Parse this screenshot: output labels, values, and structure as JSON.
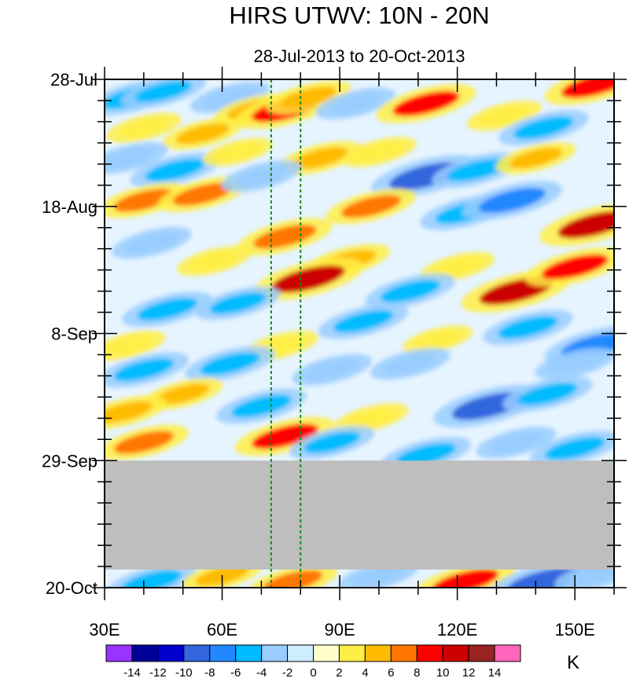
{
  "chart_data": {
    "type": "heatmap",
    "title": "HIRS UTWV: 10N - 20N",
    "subtitle": "28-Jul-2013 to 20-Oct-2013",
    "x_ticks": [
      {
        "value": 30,
        "label": "30E"
      },
      {
        "value": 60,
        "label": "60E"
      },
      {
        "value": 90,
        "label": "90E"
      },
      {
        "value": 120,
        "label": "120E"
      },
      {
        "value": 150,
        "label": "150E"
      }
    ],
    "xlim": [
      30,
      160
    ],
    "y_ticks": [
      {
        "day": 0,
        "label": "28-Jul"
      },
      {
        "day": 21,
        "label": "18-Aug"
      },
      {
        "day": 42,
        "label": "8-Sep"
      },
      {
        "day": 63,
        "label": "29-Sep"
      },
      {
        "day": 84,
        "label": "20-Oct"
      }
    ],
    "ylim_days": [
      0,
      84
    ],
    "reference_lines_lon": [
      72.5,
      80
    ],
    "missing_data": {
      "start_day": 63,
      "end_day": 81
    },
    "colorbar": {
      "unit": "K",
      "levels": [
        "-14",
        "-12",
        "-10",
        "-8",
        "-6",
        "-4",
        "-2",
        "0",
        "2",
        "4",
        "6",
        "8",
        "10",
        "12",
        "14"
      ],
      "colors": [
        "#9933ff",
        "#000099",
        "#0000cc",
        "#3366dd",
        "#2288ff",
        "#00bbff",
        "#99ccff",
        "#cceeff",
        "#ffffcc",
        "#ffee44",
        "#ffbb00",
        "#ff7700",
        "#ff0000",
        "#cc0000",
        "#992222",
        "#ff66bb"
      ]
    },
    "anomaly_blobs": [
      {
        "lon": 37,
        "day": 3,
        "value": -6
      },
      {
        "lon": 45,
        "day": 2,
        "value": -5
      },
      {
        "lon": 62,
        "day": 3,
        "value": -4
      },
      {
        "lon": 68,
        "day": 5,
        "value": 4
      },
      {
        "lon": 76,
        "day": 5,
        "value": 8
      },
      {
        "lon": 82,
        "day": 3,
        "value": 5
      },
      {
        "lon": 94,
        "day": 4,
        "value": -4
      },
      {
        "lon": 112,
        "day": 4,
        "value": 8
      },
      {
        "lon": 132,
        "day": 6,
        "value": 3
      },
      {
        "lon": 142,
        "day": 8,
        "value": -6
      },
      {
        "lon": 155,
        "day": 1,
        "value": 8
      },
      {
        "lon": 40,
        "day": 8,
        "value": 3
      },
      {
        "lon": 55,
        "day": 9,
        "value": 4
      },
      {
        "lon": 36,
        "day": 13,
        "value": -4
      },
      {
        "lon": 48,
        "day": 15,
        "value": -6
      },
      {
        "lon": 64,
        "day": 12,
        "value": 2
      },
      {
        "lon": 85,
        "day": 13,
        "value": 5
      },
      {
        "lon": 100,
        "day": 12,
        "value": 3
      },
      {
        "lon": 112,
        "day": 16,
        "value": -10
      },
      {
        "lon": 125,
        "day": 15,
        "value": -6
      },
      {
        "lon": 140,
        "day": 13,
        "value": 4
      },
      {
        "lon": 40,
        "day": 20,
        "value": 6
      },
      {
        "lon": 55,
        "day": 19,
        "value": 6
      },
      {
        "lon": 70,
        "day": 16,
        "value": -4
      },
      {
        "lon": 98,
        "day": 21,
        "value": 6
      },
      {
        "lon": 122,
        "day": 22,
        "value": -6
      },
      {
        "lon": 134,
        "day": 20,
        "value": -8
      },
      {
        "lon": 155,
        "day": 24,
        "value": 10
      },
      {
        "lon": 76,
        "day": 26,
        "value": 7
      },
      {
        "lon": 92,
        "day": 30,
        "value": 5
      },
      {
        "lon": 42,
        "day": 27,
        "value": -4
      },
      {
        "lon": 58,
        "day": 30,
        "value": 3
      },
      {
        "lon": 82,
        "day": 33,
        "value": 10
      },
      {
        "lon": 120,
        "day": 31,
        "value": 3
      },
      {
        "lon": 135,
        "day": 35,
        "value": 10
      },
      {
        "lon": 150,
        "day": 31,
        "value": 8
      },
      {
        "lon": 108,
        "day": 35,
        "value": -6
      },
      {
        "lon": 46,
        "day": 38,
        "value": -6
      },
      {
        "lon": 64,
        "day": 37,
        "value": -5
      },
      {
        "lon": 96,
        "day": 40,
        "value": -6
      },
      {
        "lon": 138,
        "day": 41,
        "value": -6
      },
      {
        "lon": 155,
        "day": 44,
        "value": -8
      },
      {
        "lon": 36,
        "day": 44,
        "value": 3
      },
      {
        "lon": 75,
        "day": 44,
        "value": 3
      },
      {
        "lon": 115,
        "day": 43,
        "value": 2
      },
      {
        "lon": 40,
        "day": 48,
        "value": -6
      },
      {
        "lon": 62,
        "day": 47,
        "value": -6
      },
      {
        "lon": 88,
        "day": 48,
        "value": -4
      },
      {
        "lon": 108,
        "day": 47,
        "value": -4
      },
      {
        "lon": 150,
        "day": 47,
        "value": -4
      },
      {
        "lon": 50,
        "day": 52,
        "value": 4
      },
      {
        "lon": 35,
        "day": 55,
        "value": 5
      },
      {
        "lon": 70,
        "day": 54,
        "value": -6
      },
      {
        "lon": 128,
        "day": 54,
        "value": -10
      },
      {
        "lon": 143,
        "day": 52,
        "value": -6
      },
      {
        "lon": 98,
        "day": 56,
        "value": 3
      },
      {
        "lon": 76,
        "day": 59,
        "value": 8
      },
      {
        "lon": 40,
        "day": 60,
        "value": 6
      },
      {
        "lon": 88,
        "day": 60,
        "value": -5
      },
      {
        "lon": 112,
        "day": 62,
        "value": -6
      },
      {
        "lon": 135,
        "day": 60,
        "value": -4
      },
      {
        "lon": 150,
        "day": 61,
        "value": -6
      },
      {
        "lon": 42,
        "day": 83,
        "value": -6
      },
      {
        "lon": 60,
        "day": 82,
        "value": 4
      },
      {
        "lon": 78,
        "day": 83,
        "value": 6
      },
      {
        "lon": 100,
        "day": 82,
        "value": -4
      },
      {
        "lon": 122,
        "day": 83,
        "value": 8
      },
      {
        "lon": 142,
        "day": 83,
        "value": -10
      },
      {
        "lon": 155,
        "day": 82,
        "value": -4
      }
    ]
  }
}
